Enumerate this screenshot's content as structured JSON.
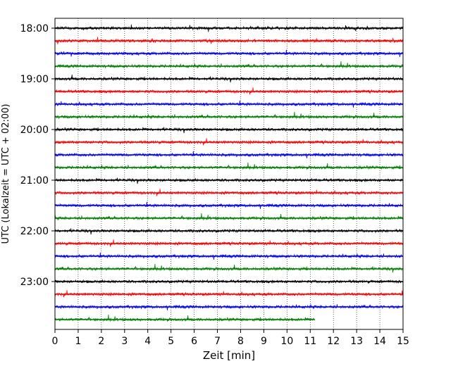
{
  "chart_data": {
    "type": "line",
    "subtype": "helicorder",
    "xlabel": "Zeit  [min]",
    "ylabel": "UTC (Lokalzeit = UTC + 02:00)",
    "xlim": [
      0,
      15
    ],
    "x_ticks": [
      "0",
      "1",
      "2",
      "3",
      "4",
      "5",
      "6",
      "7",
      "8",
      "9",
      "10",
      "11",
      "12",
      "13",
      "14",
      "15"
    ],
    "y_ticks": [
      "18:00",
      "19:00",
      "20:00",
      "21:00",
      "22:00",
      "23:00"
    ],
    "grid": "vertical dotted",
    "trace_colors": [
      "#000000",
      "#ff0000",
      "#0000ff",
      "#008000"
    ],
    "traces": [
      {
        "start": "18:00",
        "end_min": 15
      },
      {
        "start": "18:15",
        "end_min": 15
      },
      {
        "start": "18:30",
        "end_min": 15
      },
      {
        "start": "18:45",
        "end_min": 15
      },
      {
        "start": "19:00",
        "end_min": 15
      },
      {
        "start": "19:15",
        "end_min": 15
      },
      {
        "start": "19:30",
        "end_min": 15
      },
      {
        "start": "19:45",
        "end_min": 15
      },
      {
        "start": "20:00",
        "end_min": 15
      },
      {
        "start": "20:15",
        "end_min": 15
      },
      {
        "start": "20:30",
        "end_min": 15
      },
      {
        "start": "20:45",
        "end_min": 15
      },
      {
        "start": "21:00",
        "end_min": 15
      },
      {
        "start": "21:15",
        "end_min": 15
      },
      {
        "start": "21:30",
        "end_min": 15
      },
      {
        "start": "21:45",
        "end_min": 15
      },
      {
        "start": "22:00",
        "end_min": 15
      },
      {
        "start": "22:15",
        "end_min": 15
      },
      {
        "start": "22:30",
        "end_min": 15
      },
      {
        "start": "22:45",
        "end_min": 15
      },
      {
        "start": "23:00",
        "end_min": 15
      },
      {
        "start": "23:15",
        "end_min": 15
      },
      {
        "start": "23:30",
        "end_min": 15
      },
      {
        "start": "23:45",
        "end_min": 11.2
      }
    ]
  }
}
